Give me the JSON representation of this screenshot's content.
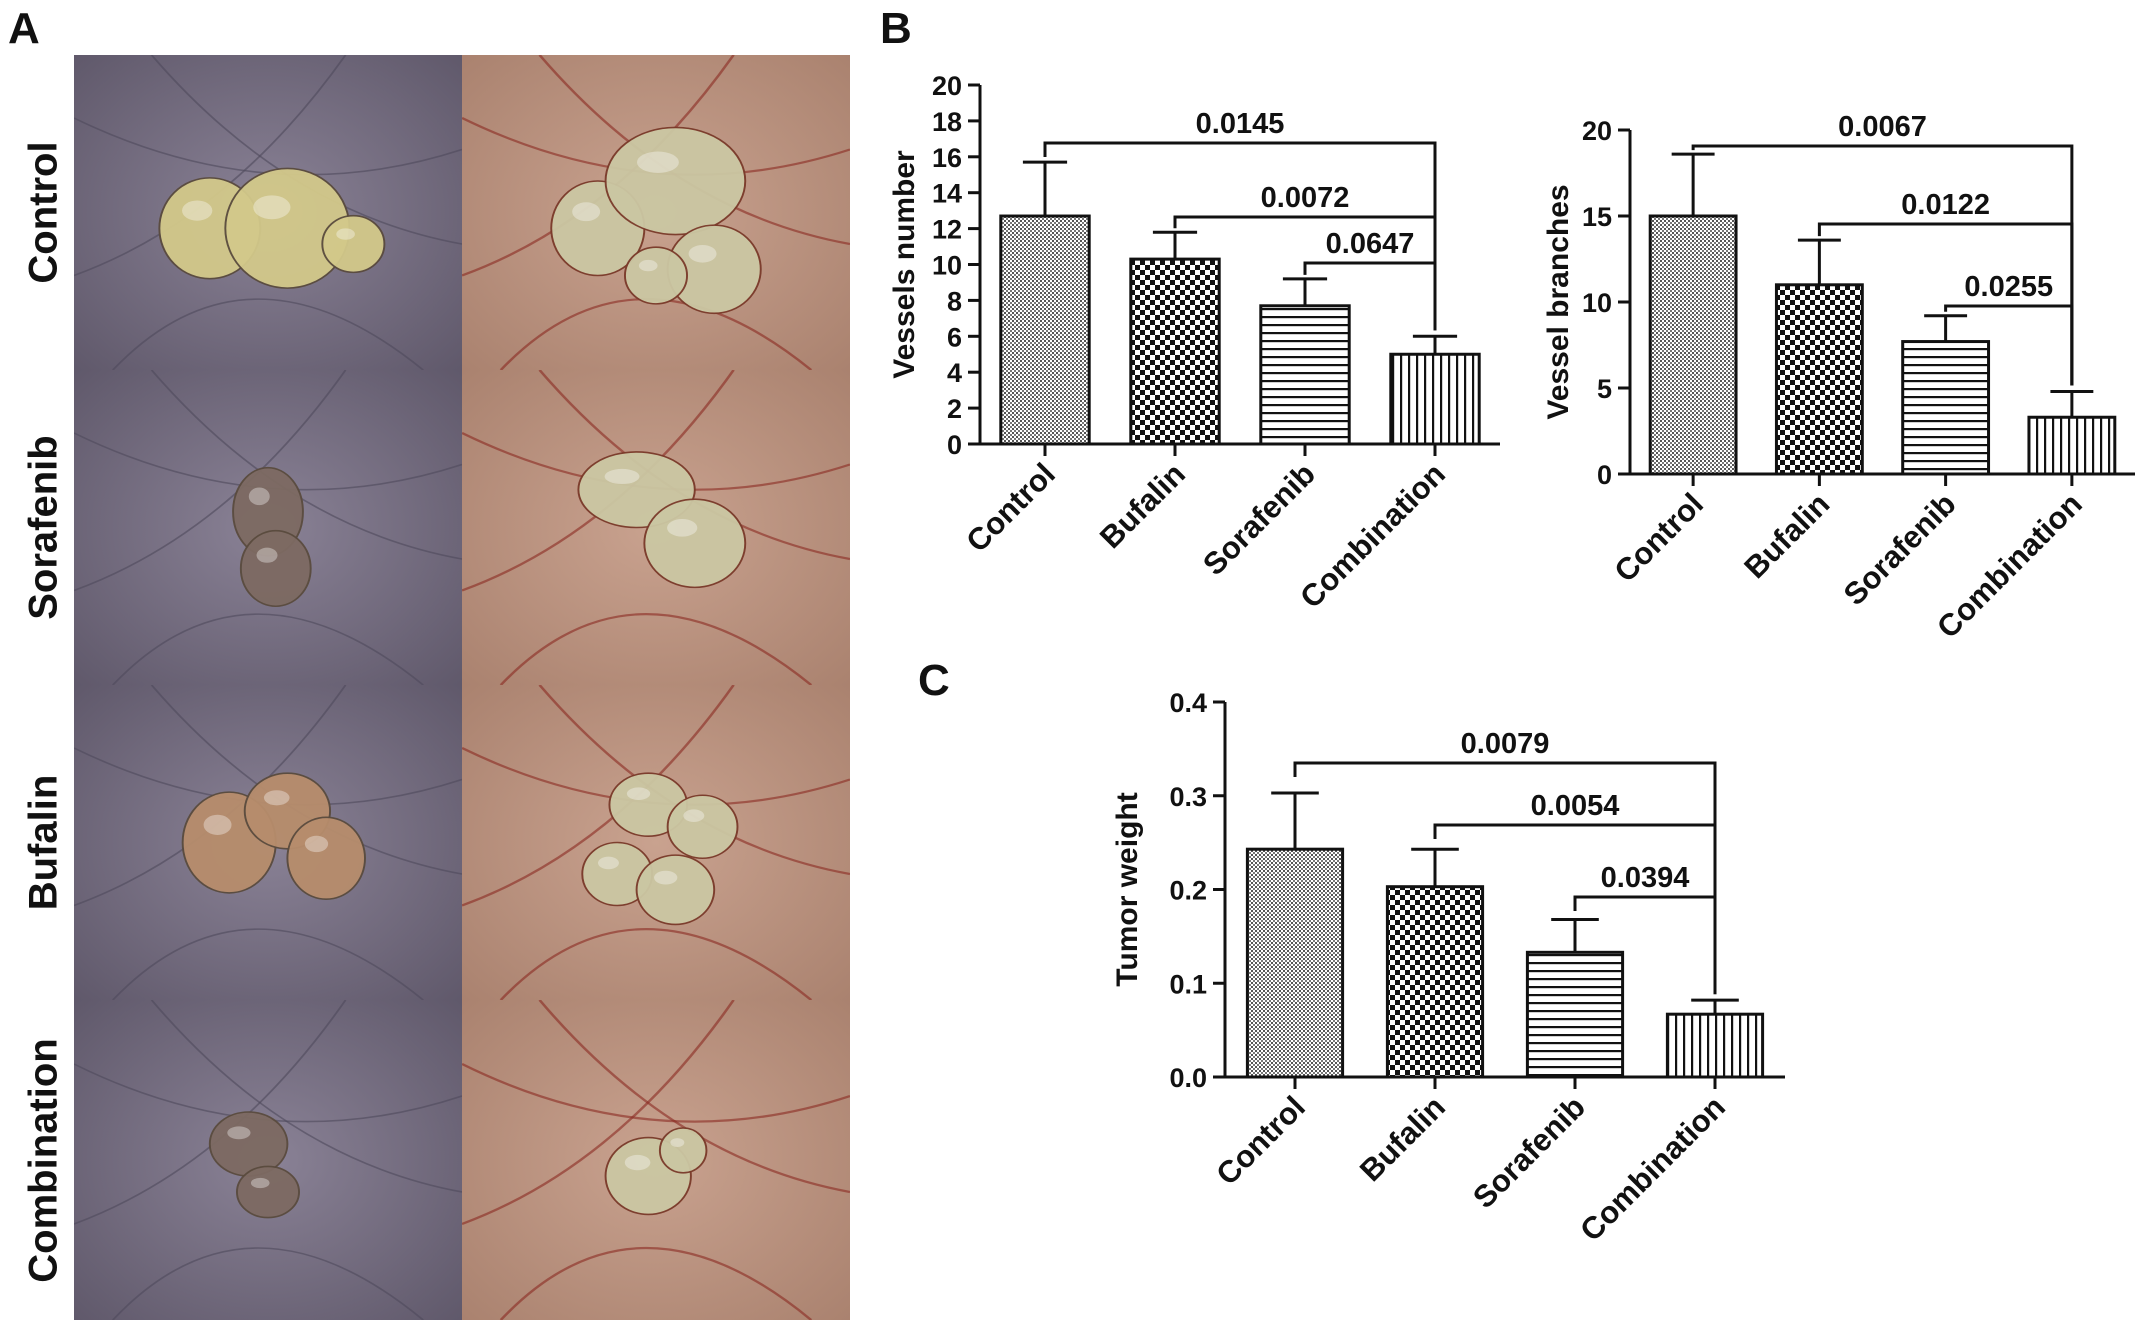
{
  "panels": {
    "a": "A",
    "b": "B",
    "c": "C"
  },
  "photo_rows": [
    "Control",
    "Sorafenib",
    "Bufalin",
    "Combination"
  ],
  "colors": {
    "bar_fill": "#ffffff",
    "bar_stroke": "#111111",
    "text": "#111111",
    "skin_left": "#8a8296",
    "skin_right": "#c9a28f",
    "tumor": "#c8c08e",
    "vessel": "#8a2a22"
  },
  "chart_data": [
    {
      "id": "vessels-number",
      "type": "bar",
      "categories": [
        "Control",
        "Bufalin",
        "Sorafenib",
        "Combination"
      ],
      "values": [
        12.7,
        10.3,
        7.7,
        5.0
      ],
      "error": [
        3.0,
        1.5,
        1.5,
        1.0
      ],
      "patterns": [
        "crosshatch-fine",
        "checker",
        "horizontal",
        "vertical"
      ],
      "ylabel": "Vessels number",
      "ylim": [
        0,
        20
      ],
      "yticks": [
        "0",
        "2",
        "4",
        "6",
        "8",
        "10",
        "12",
        "14",
        "16",
        "18",
        "20"
      ],
      "comparisons": [
        {
          "from": "Control",
          "to": "Combination",
          "label": "0.0145"
        },
        {
          "from": "Bufalin",
          "to": "Combination",
          "label": "0.0072"
        },
        {
          "from": "Sorafenib",
          "to": "Combination",
          "label": "0.0647"
        }
      ],
      "grid": false
    },
    {
      "id": "vessel-branches",
      "type": "bar",
      "categories": [
        "Control",
        "Bufalin",
        "Sorafenib",
        "Combination"
      ],
      "values": [
        15.0,
        11.0,
        7.7,
        3.3
      ],
      "error": [
        3.6,
        2.6,
        1.5,
        1.5
      ],
      "patterns": [
        "crosshatch-fine",
        "checker",
        "horizontal",
        "vertical"
      ],
      "ylabel": "Vessel branches",
      "ylim": [
        0,
        20
      ],
      "yticks": [
        "0",
        "5",
        "10",
        "15",
        "20"
      ],
      "comparisons": [
        {
          "from": "Control",
          "to": "Combination",
          "label": "0.0067"
        },
        {
          "from": "Bufalin",
          "to": "Combination",
          "label": "0.0122"
        },
        {
          "from": "Sorafenib",
          "to": "Combination",
          "label": "0.0255"
        }
      ],
      "grid": false
    },
    {
      "id": "tumor-weight",
      "type": "bar",
      "categories": [
        "Control",
        "Bufalin",
        "Sorafenib",
        "Combination"
      ],
      "values": [
        0.243,
        0.203,
        0.133,
        0.067
      ],
      "error": [
        0.06,
        0.04,
        0.035,
        0.015
      ],
      "patterns": [
        "crosshatch-fine",
        "checker",
        "horizontal",
        "vertical"
      ],
      "ylabel": "Tumor weight",
      "ylim": [
        0,
        0.4
      ],
      "yticks": [
        "0.0",
        "0.1",
        "0.2",
        "0.3",
        "0.4"
      ],
      "comparisons": [
        {
          "from": "Control",
          "to": "Combination",
          "label": "0.0079"
        },
        {
          "from": "Bufalin",
          "to": "Combination",
          "label": "0.0054"
        },
        {
          "from": "Sorafenib",
          "to": "Combination",
          "label": "0.0394"
        }
      ],
      "grid": false
    }
  ]
}
